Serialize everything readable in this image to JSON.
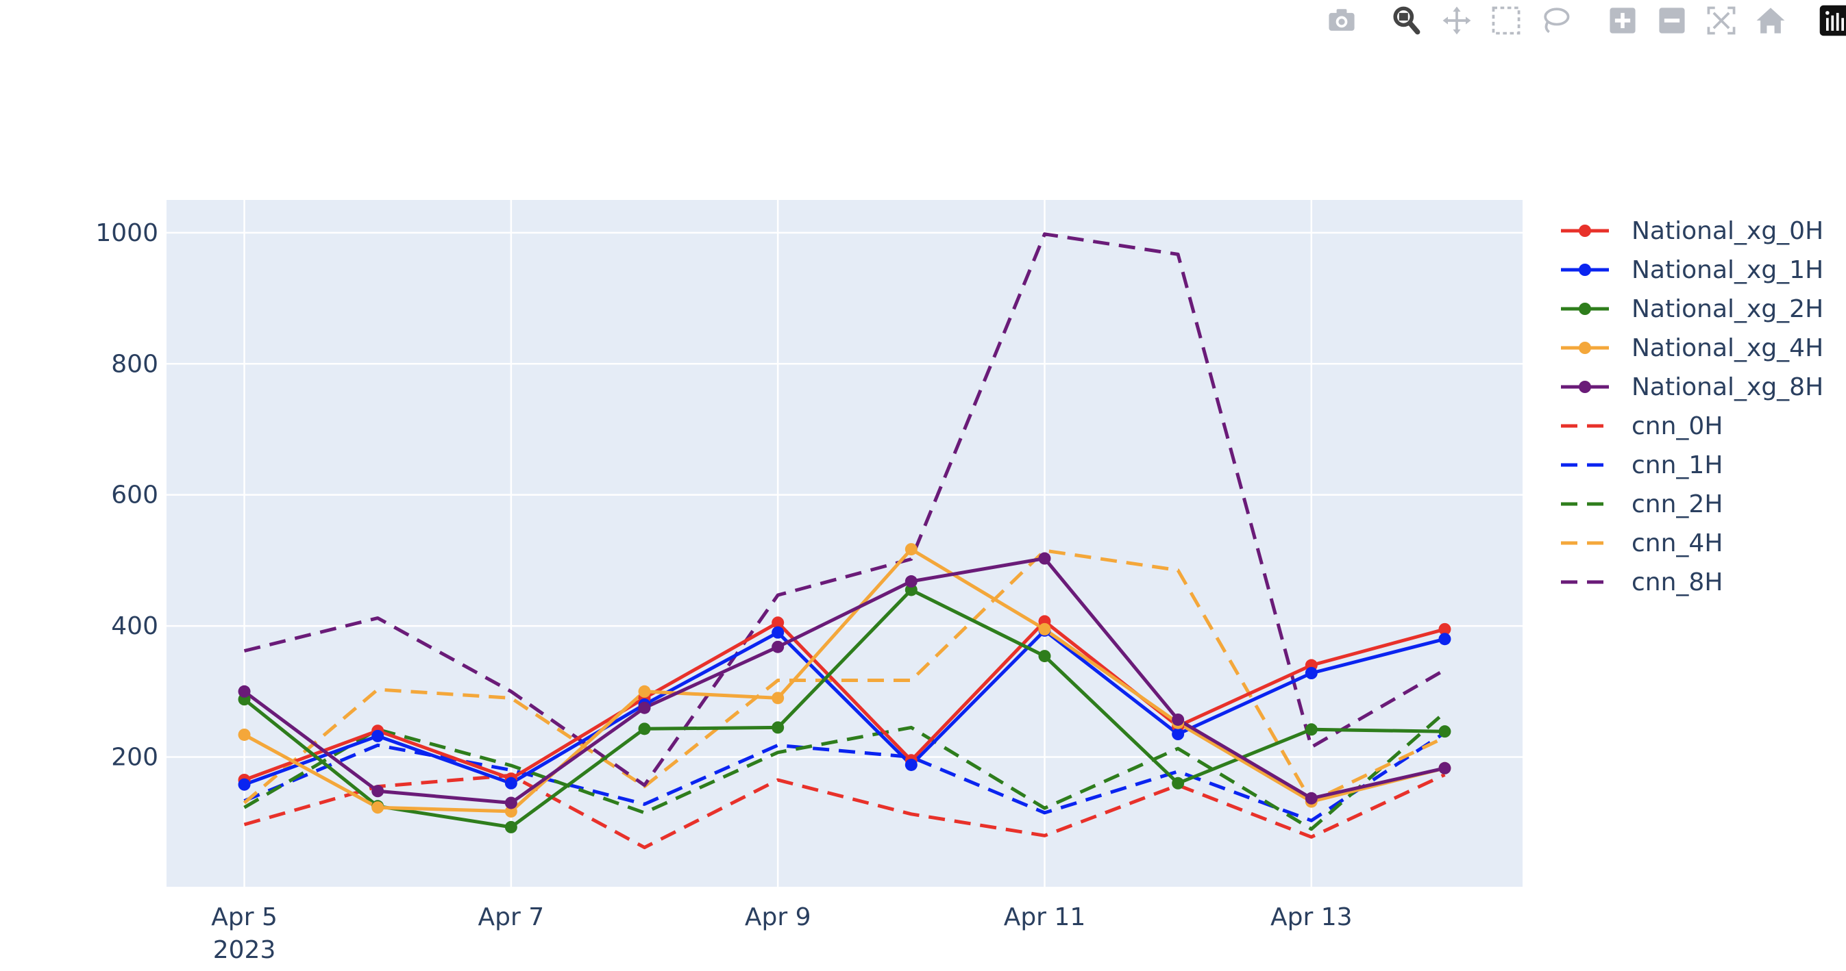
{
  "modebar": {
    "buttons": [
      {
        "name": "camera-icon",
        "title": "Download plot as a png"
      },
      {
        "name": "zoom-icon",
        "title": "Zoom"
      },
      {
        "name": "pan-icon",
        "title": "Pan"
      },
      {
        "name": "box-select-icon",
        "title": "Box Select"
      },
      {
        "name": "lasso-select-icon",
        "title": "Lasso Select"
      },
      {
        "name": "zoom-in-icon",
        "title": "Zoom in"
      },
      {
        "name": "zoom-out-icon",
        "title": "Zoom out"
      },
      {
        "name": "autoscale-icon",
        "title": "Autoscale"
      },
      {
        "name": "reset-axes-icon",
        "title": "Reset axes"
      },
      {
        "name": "plotly-logo-icon",
        "title": "Produced with Plotly"
      }
    ]
  },
  "chart_data": {
    "type": "line",
    "x": [
      "2023-04-05",
      "2023-04-06",
      "2023-04-07",
      "2023-04-08",
      "2023-04-09",
      "2023-04-10",
      "2023-04-11",
      "2023-04-12",
      "2023-04-13",
      "2023-04-14"
    ],
    "x_ticks": [
      {
        "date": "2023-04-05",
        "label": "Apr 5",
        "sublabel": "2023"
      },
      {
        "date": "2023-04-07",
        "label": "Apr 7"
      },
      {
        "date": "2023-04-09",
        "label": "Apr 9"
      },
      {
        "date": "2023-04-11",
        "label": "Apr 11"
      },
      {
        "date": "2023-04-13",
        "label": "Apr 13"
      }
    ],
    "y_ticks": [
      200,
      400,
      600,
      800,
      1000
    ],
    "xlim": [
      "2023-04-04 10:00",
      "2023-04-14 14:00"
    ],
    "ylim": [
      2,
      1050
    ],
    "grid": true,
    "legend_position": "right",
    "plot_background": "#e5ecf6",
    "series": [
      {
        "name": "National_xg_0H",
        "color": "#e8312a",
        "dash": "solid",
        "markers": true,
        "values": [
          165,
          240,
          167,
          290,
          405,
          195,
          407,
          247,
          340,
          395
        ]
      },
      {
        "name": "National_xg_1H",
        "color": "#0a24f0",
        "dash": "solid",
        "markers": true,
        "values": [
          158,
          232,
          160,
          280,
          390,
          188,
          393,
          235,
          328,
          380
        ]
      },
      {
        "name": "National_xg_2H",
        "color": "#2e7d1c",
        "dash": "solid",
        "markers": true,
        "values": [
          288,
          125,
          93,
          243,
          245,
          455,
          354,
          160,
          242,
          239
        ]
      },
      {
        "name": "National_xg_4H",
        "color": "#f4a73a",
        "dash": "solid",
        "markers": true,
        "values": [
          234,
          123,
          117,
          300,
          290,
          517,
          395,
          252,
          132,
          183
        ]
      },
      {
        "name": "National_xg_8H",
        "color": "#6a1b78",
        "dash": "solid",
        "markers": true,
        "values": [
          300,
          148,
          130,
          275,
          368,
          468,
          503,
          257,
          137,
          183
        ]
      },
      {
        "name": "cnn_0H",
        "color": "#e8312a",
        "dash": "dash",
        "markers": false,
        "values": [
          97,
          155,
          172,
          62,
          165,
          113,
          80,
          157,
          78,
          173
        ]
      },
      {
        "name": "cnn_1H",
        "color": "#0a24f0",
        "dash": "dash",
        "markers": false,
        "values": [
          133,
          218,
          180,
          128,
          218,
          200,
          115,
          178,
          103,
          237
        ]
      },
      {
        "name": "cnn_2H",
        "color": "#2e7d1c",
        "dash": "dash",
        "markers": false,
        "values": [
          123,
          242,
          187,
          115,
          207,
          245,
          122,
          213,
          90,
          268
        ]
      },
      {
        "name": "cnn_4H",
        "color": "#f4a73a",
        "dash": "dash",
        "markers": false,
        "values": [
          130,
          303,
          290,
          155,
          317,
          317,
          515,
          485,
          132,
          230
        ]
      },
      {
        "name": "cnn_8H",
        "color": "#6a1b78",
        "dash": "dash",
        "markers": false,
        "values": [
          362,
          412,
          300,
          157,
          447,
          502,
          998,
          967,
          215,
          333
        ]
      }
    ]
  }
}
